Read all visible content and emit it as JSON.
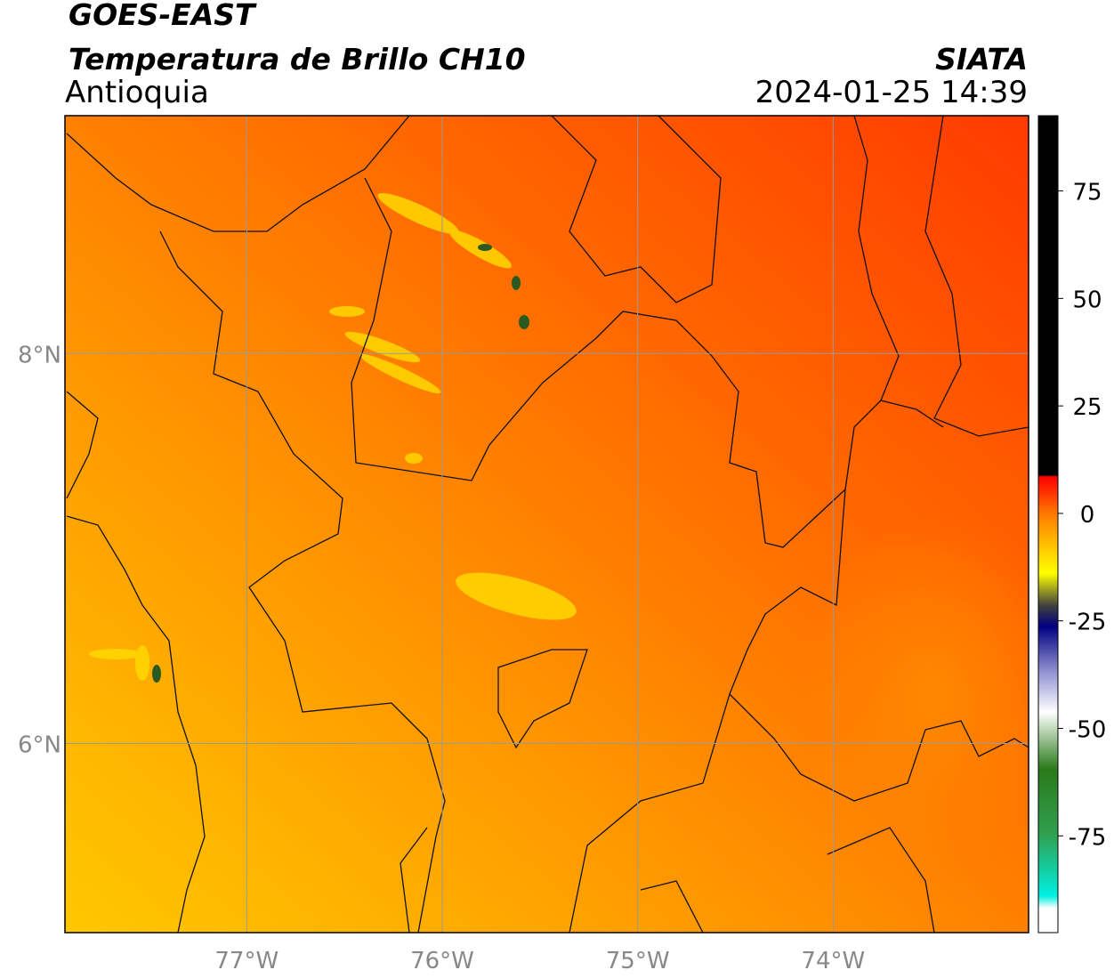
{
  "header": {
    "satellite": "GOES-EAST",
    "product": "Temperatura de Brillo CH10",
    "region": "Antioquia",
    "agency": "SIATA",
    "datetime": "2024-01-25 14:39"
  },
  "map": {
    "lonlim": [
      -77.93,
      -73.0
    ],
    "latlim": [
      5.03,
      9.22
    ],
    "lonticks": [
      {
        "value": -77,
        "label": "77°W"
      },
      {
        "value": -76,
        "label": "76°W"
      },
      {
        "value": -75,
        "label": "75°W"
      },
      {
        "value": -74,
        "label": "74°W"
      }
    ],
    "latticks": [
      {
        "value": 8,
        "label": "8°N"
      },
      {
        "value": 6,
        "label": "6°N"
      }
    ]
  },
  "colorbar": {
    "lim": [
      -97.5,
      92.5
    ],
    "ticks": [
      75,
      50,
      25,
      0,
      -25,
      -50,
      -75
    ]
  }
}
